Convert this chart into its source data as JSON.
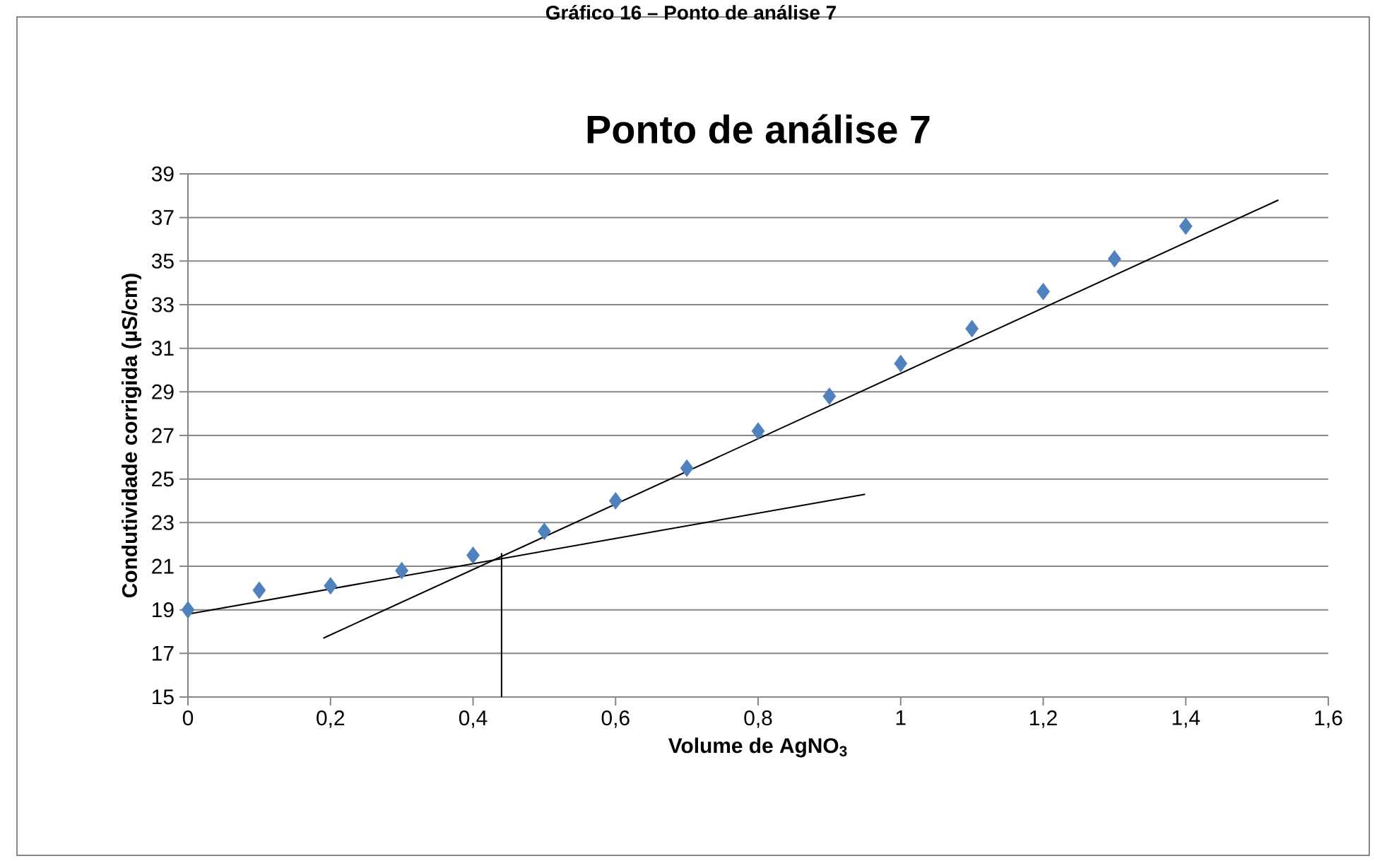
{
  "chart_data": {
    "type": "scatter",
    "subtitle": "Gráfico 16 – Ponto de análise 7",
    "title": "Ponto de análise 7",
    "xlabel": "Volume de AgNO$_{3}$",
    "ylabel": "Condutividade corrigida  (µS/cm)",
    "xlim": [
      0,
      1.6
    ],
    "ylim": [
      15,
      39
    ],
    "xticks": [
      0,
      {
        "value": 0.2,
        "label": "0,2"
      },
      {
        "value": 0.4,
        "label": "0,4"
      },
      {
        "value": 0.6,
        "label": "0,6"
      },
      {
        "value": 0.8,
        "label": "0,8"
      },
      1,
      {
        "value": 1.2,
        "label": "1,2"
      },
      {
        "value": 1.4,
        "label": "1,4"
      },
      {
        "value": 1.6,
        "label": "1,6"
      }
    ],
    "yticks": [
      15,
      17,
      19,
      21,
      23,
      25,
      27,
      29,
      31,
      33,
      35,
      37,
      39
    ],
    "grid": "y",
    "marker": "diamond",
    "series": [
      {
        "color": "#4f81bd",
        "x": [
          0,
          0.1,
          0.2,
          0.3,
          0.4,
          0.5,
          0.6,
          0.7,
          0.8,
          0.9,
          1.0,
          1.1,
          1.2,
          1.3,
          1.4
        ],
        "values": [
          19.0,
          19.9,
          20.1,
          20.8,
          21.5,
          22.6,
          24.0,
          25.5,
          27.2,
          28.8,
          30.3,
          31.9,
          33.6,
          35.1,
          36.6
        ]
      },
      {
        "type": "line",
        "marker": "none",
        "color": "#000000",
        "x": [
          0,
          0.95
        ],
        "values": [
          18.8,
          24.3
        ]
      },
      {
        "type": "line",
        "marker": "none",
        "color": "#000000",
        "x": [
          0.19,
          1.53
        ],
        "values": [
          17.7,
          37.8
        ]
      },
      {
        "type": "line",
        "marker": "none",
        "color": "#000000",
        "x": [
          0.44,
          0.44
        ],
        "values": [
          21.6,
          15
        ]
      }
    ]
  }
}
